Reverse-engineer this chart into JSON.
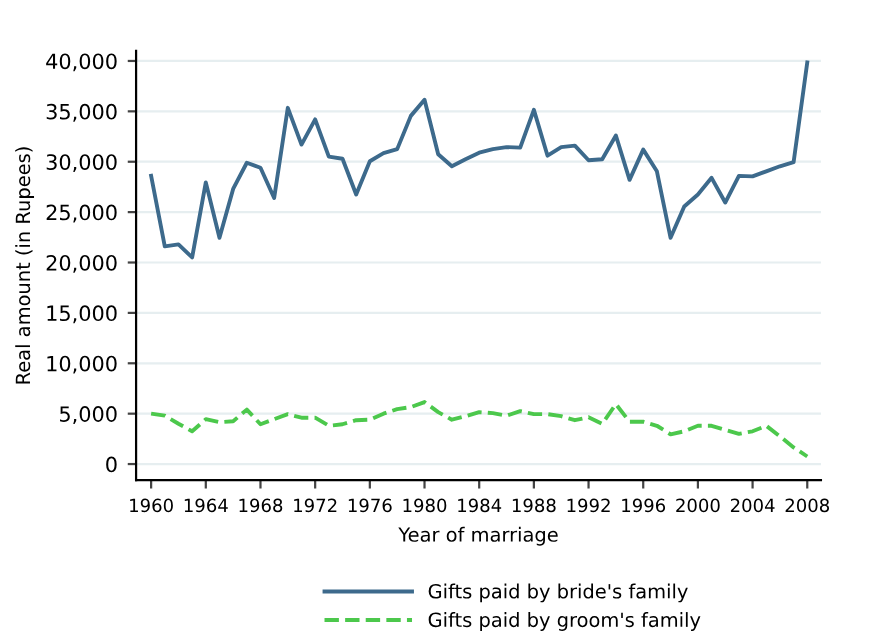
{
  "chart_data": {
    "type": "line",
    "xlabel": "Year of marriage",
    "ylabel": "Real amount (in Rupees)",
    "x": [
      1960,
      1961,
      1962,
      1963,
      1964,
      1965,
      1966,
      1967,
      1968,
      1969,
      1970,
      1971,
      1972,
      1973,
      1974,
      1975,
      1976,
      1977,
      1978,
      1979,
      1980,
      1981,
      1982,
      1983,
      1984,
      1985,
      1986,
      1987,
      1988,
      1989,
      1990,
      1991,
      1992,
      1993,
      1994,
      1995,
      1996,
      1997,
      1998,
      1999,
      2000,
      2001,
      2002,
      2003,
      2004,
      2005,
      2006,
      2007,
      2008
    ],
    "series": [
      {
        "name": "Gifts paid by bride's family",
        "color": "#3d6a8c",
        "line_style": "solid",
        "values": [
          28600,
          21600,
          21800,
          20500,
          27950,
          22450,
          27300,
          29900,
          29400,
          26400,
          35350,
          31700,
          34200,
          30500,
          30300,
          26750,
          30050,
          30850,
          31250,
          34550,
          36150,
          30750,
          29550,
          30250,
          30900,
          31250,
          31450,
          31400,
          35150,
          30600,
          31450,
          31600,
          30150,
          30250,
          32600,
          28200,
          31200,
          29050,
          22450,
          25550,
          26750,
          28400,
          25950,
          28600,
          28550,
          29050,
          29550,
          29950,
          39850
        ]
      },
      {
        "name": "Gifts paid by groom's family",
        "color": "#4cc84c",
        "line_style": "dashed",
        "values": [
          5000,
          4800,
          4000,
          3250,
          4450,
          4150,
          4250,
          5400,
          3950,
          4450,
          4950,
          4600,
          4600,
          3800,
          3950,
          4350,
          4400,
          5000,
          5450,
          5650,
          6150,
          5150,
          4400,
          4750,
          5150,
          5050,
          4800,
          5250,
          4950,
          4950,
          4750,
          4350,
          4650,
          4000,
          5950,
          4200,
          4200,
          3800,
          2950,
          3250,
          3800,
          3800,
          3400,
          3000,
          3250,
          3800,
          2750,
          1650,
          750
        ]
      }
    ],
    "xlim": [
      1958.9,
      2009
    ],
    "xticks": [
      1960,
      1964,
      1968,
      1972,
      1976,
      1980,
      1984,
      1988,
      1992,
      1996,
      2000,
      2004,
      2008
    ],
    "ylim": [
      -1600,
      41000
    ],
    "yticks": [
      0,
      {
        "value": 5000,
        "label": "5,000"
      },
      {
        "value": 10000,
        "label": "10,000"
      },
      {
        "value": 15000,
        "label": "15,000"
      },
      {
        "value": 20000,
        "label": "20,000"
      },
      {
        "value": 25000,
        "label": "25,000"
      },
      {
        "value": 30000,
        "label": "30,000"
      },
      {
        "value": 35000,
        "label": "35,000"
      },
      {
        "value": 40000,
        "label": "40,000"
      }
    ],
    "grid": "y",
    "legend": "bottom",
    "marker": "none"
  }
}
